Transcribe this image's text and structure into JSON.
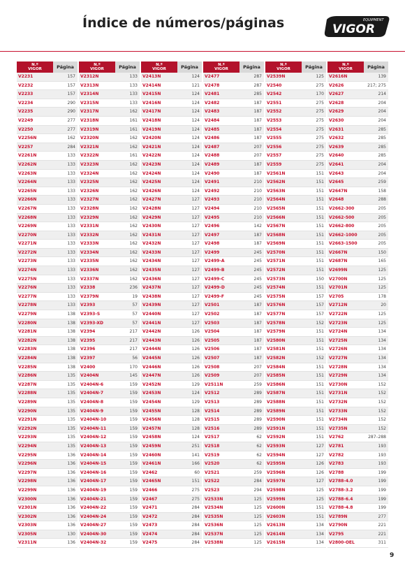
{
  "header": {
    "title": "Índice de números/páginas",
    "logo_small": "EQUIPMENT",
    "logo": "VIGOR"
  },
  "table": {
    "code_header": "N.º\nVIGOR",
    "page_header": "Página",
    "columns": [
      [
        [
          "V2231",
          "157"
        ],
        [
          "V2232",
          "157"
        ],
        [
          "V2233",
          "157"
        ],
        [
          "V2234",
          "290"
        ],
        [
          "V2235",
          "290"
        ],
        [
          "V2249",
          "277"
        ],
        [
          "V2250",
          "277"
        ],
        [
          "V2256N",
          "162"
        ],
        [
          "V2257",
          "284"
        ],
        [
          "V2261N",
          "133"
        ],
        [
          "V2262N",
          "133"
        ],
        [
          "V2263N",
          "133"
        ],
        [
          "V2264N",
          "133"
        ],
        [
          "V2265N",
          "133"
        ],
        [
          "V2266N",
          "133"
        ],
        [
          "V2267N",
          "133"
        ],
        [
          "V2268N",
          "133"
        ],
        [
          "V2269N",
          "133"
        ],
        [
          "V2270N",
          "133"
        ],
        [
          "V2271N",
          "133"
        ],
        [
          "V2272N",
          "133"
        ],
        [
          "V2273N",
          "133"
        ],
        [
          "V2274N",
          "133"
        ],
        [
          "V2275N",
          "133"
        ],
        [
          "V2276N",
          "133"
        ],
        [
          "V2277N",
          "133"
        ],
        [
          "V2278N",
          "133"
        ],
        [
          "V2279N",
          "138"
        ],
        [
          "V2280N",
          "138"
        ],
        [
          "V2281N",
          "138"
        ],
        [
          "V2282N",
          "138"
        ],
        [
          "V2283N",
          "138"
        ],
        [
          "V2284N",
          "138"
        ],
        [
          "V2285N",
          "138"
        ],
        [
          "V2286N",
          "135"
        ],
        [
          "V2287N",
          "135"
        ],
        [
          "V2288N",
          "135"
        ],
        [
          "V2289N",
          "135"
        ],
        [
          "V2290N",
          "135"
        ],
        [
          "V2291N",
          "135"
        ],
        [
          "V2292N",
          "135"
        ],
        [
          "V2293N",
          "135"
        ],
        [
          "V2294N",
          "135"
        ],
        [
          "V2295N",
          "136"
        ],
        [
          "V2296N",
          "136"
        ],
        [
          "V2297N",
          "136"
        ],
        [
          "V2298N",
          "136"
        ],
        [
          "V2299N",
          "136"
        ],
        [
          "V2300N",
          "136"
        ],
        [
          "V2301N",
          "136"
        ],
        [
          "V2302N",
          "136"
        ],
        [
          "V2303N",
          "136"
        ],
        [
          "V2305N",
          "130"
        ],
        [
          "V2311N",
          "136"
        ]
      ],
      [
        [
          "V2312N",
          "133"
        ],
        [
          "V2313N",
          "133"
        ],
        [
          "V2314N",
          "133"
        ],
        [
          "V2315N",
          "133"
        ],
        [
          "V2317N",
          "162"
        ],
        [
          "V2318N",
          "161"
        ],
        [
          "V2319N",
          "161"
        ],
        [
          "V2320N",
          "162"
        ],
        [
          "V2321N",
          "162"
        ],
        [
          "V2322N",
          "161"
        ],
        [
          "V2323N",
          "162"
        ],
        [
          "V2324N",
          "162"
        ],
        [
          "V2325N",
          "162"
        ],
        [
          "V2326N",
          "162"
        ],
        [
          "V2327N",
          "162"
        ],
        [
          "V2328N",
          "162"
        ],
        [
          "V2329N",
          "162"
        ],
        [
          "V2331N",
          "162"
        ],
        [
          "V2332N",
          "162"
        ],
        [
          "V2333N",
          "162"
        ],
        [
          "V2334N",
          "162"
        ],
        [
          "V2335N",
          "162"
        ],
        [
          "V2336N",
          "162"
        ],
        [
          "V2337N",
          "162"
        ],
        [
          "V2338",
          "236"
        ],
        [
          "V2379N",
          "19"
        ],
        [
          "V2393",
          "57"
        ],
        [
          "V2393-S",
          "57"
        ],
        [
          "V2393-XD",
          "57"
        ],
        [
          "V2394",
          "217"
        ],
        [
          "V2395",
          "217"
        ],
        [
          "V2396",
          "217"
        ],
        [
          "V2397",
          "56"
        ],
        [
          "V2400",
          "170"
        ],
        [
          "V2404N",
          "145"
        ],
        [
          "V2404N-6",
          "159"
        ],
        [
          "V2404N-7",
          "159"
        ],
        [
          "V2404N-8",
          "159"
        ],
        [
          "V2404N-9",
          "159"
        ],
        [
          "V2404N-10",
          "159"
        ],
        [
          "V2404N-11",
          "159"
        ],
        [
          "V2404N-12",
          "159"
        ],
        [
          "V2404N-13",
          "159"
        ],
        [
          "V2404N-14",
          "159"
        ],
        [
          "V2404N-15",
          "159"
        ],
        [
          "V2404N-16",
          "159"
        ],
        [
          "V2404N-17",
          "159"
        ],
        [
          "V2404N-19",
          "159"
        ],
        [
          "V2404N-21",
          "159"
        ],
        [
          "V2404N-22",
          "159"
        ],
        [
          "V2404N-24",
          "159"
        ],
        [
          "V2404N-27",
          "159"
        ],
        [
          "V2404N-30",
          "159"
        ],
        [
          "V2404N-32",
          "159"
        ]
      ],
      [
        [
          "V2413N",
          "124"
        ],
        [
          "V2414N",
          "121"
        ],
        [
          "V2415N",
          "124"
        ],
        [
          "V2416N",
          "124"
        ],
        [
          "V2417N",
          "124"
        ],
        [
          "V2418N",
          "124"
        ],
        [
          "V2419N",
          "124"
        ],
        [
          "V2420N",
          "124"
        ],
        [
          "V2421N",
          "124"
        ],
        [
          "V2422N",
          "124"
        ],
        [
          "V2423N",
          "124"
        ],
        [
          "V2424N",
          "124"
        ],
        [
          "V2425N",
          "124"
        ],
        [
          "V2426N",
          "124"
        ],
        [
          "V2427N",
          "127"
        ],
        [
          "V2428N",
          "127"
        ],
        [
          "V2429N",
          "127"
        ],
        [
          "V2430N",
          "127"
        ],
        [
          "V2431N",
          "127"
        ],
        [
          "V2432N",
          "127"
        ],
        [
          "V2433N",
          "127"
        ],
        [
          "V2434N",
          "127"
        ],
        [
          "V2435N",
          "127"
        ],
        [
          "V2436N",
          "127"
        ],
        [
          "V2437N",
          "127"
        ],
        [
          "V2438N",
          "127"
        ],
        [
          "V2439N",
          "127"
        ],
        [
          "V2440N",
          "127"
        ],
        [
          "V2441N",
          "127"
        ],
        [
          "V2442N",
          "126"
        ],
        [
          "V2443N",
          "126"
        ],
        [
          "V2444N",
          "126"
        ],
        [
          "V2445N",
          "126"
        ],
        [
          "V2446N",
          "126"
        ],
        [
          "V2447N",
          "126"
        ],
        [
          "V2452N",
          "129"
        ],
        [
          "V2453N",
          "124"
        ],
        [
          "V2454N",
          "129"
        ],
        [
          "V2455N",
          "128"
        ],
        [
          "V2456N",
          "128"
        ],
        [
          "V2457N",
          "128"
        ],
        [
          "V2458N",
          "124"
        ],
        [
          "V2459N",
          "251"
        ],
        [
          "V2460N",
          "141"
        ],
        [
          "V2461N",
          "166"
        ],
        [
          "V2462",
          "60"
        ],
        [
          "V2465N",
          "151"
        ],
        [
          "V2466",
          "275"
        ],
        [
          "V2467",
          "275"
        ],
        [
          "V2471",
          "284"
        ],
        [
          "V2472",
          "284"
        ],
        [
          "V2473",
          "284"
        ],
        [
          "V2474",
          "284"
        ],
        [
          "V2475",
          "284"
        ]
      ],
      [
        [
          "V2477",
          "287"
        ],
        [
          "V2478",
          "287"
        ],
        [
          "V2481",
          "285"
        ],
        [
          "V2482",
          "187"
        ],
        [
          "V2483",
          "187"
        ],
        [
          "V2484",
          "187"
        ],
        [
          "V2485",
          "187"
        ],
        [
          "V2486",
          "187"
        ],
        [
          "V2487",
          "207"
        ],
        [
          "V2488",
          "207"
        ],
        [
          "V2489",
          "187"
        ],
        [
          "V2490",
          "187"
        ],
        [
          "V2491",
          "210"
        ],
        [
          "V2492",
          "210"
        ],
        [
          "V2493",
          "210"
        ],
        [
          "V2494",
          "210"
        ],
        [
          "V2495",
          "210"
        ],
        [
          "V2496",
          "142"
        ],
        [
          "V2497",
          "187"
        ],
        [
          "V2498",
          "187"
        ],
        [
          "V2499",
          "245"
        ],
        [
          "V2499-A",
          "245"
        ],
        [
          "V2499-B",
          "245"
        ],
        [
          "V2499-C",
          "245"
        ],
        [
          "V2499-D",
          "245"
        ],
        [
          "V2499-F",
          "245"
        ],
        [
          "V2501",
          "187"
        ],
        [
          "V2502",
          "187"
        ],
        [
          "V2503",
          "187"
        ],
        [
          "V2504",
          "187"
        ],
        [
          "V2505",
          "187"
        ],
        [
          "V2506",
          "187"
        ],
        [
          "V2507",
          "187"
        ],
        [
          "V2508",
          "207"
        ],
        [
          "V2509",
          "207"
        ],
        [
          "V2511N",
          "259"
        ],
        [
          "V2512",
          "289"
        ],
        [
          "V2513",
          "289"
        ],
        [
          "V2514",
          "289"
        ],
        [
          "V2515",
          "289"
        ],
        [
          "V2516",
          "289"
        ],
        [
          "V2517",
          "62"
        ],
        [
          "V2518",
          "62"
        ],
        [
          "V2519",
          "62"
        ],
        [
          "V2520",
          "62"
        ],
        [
          "V2521",
          "259"
        ],
        [
          "V2522",
          "284"
        ],
        [
          "V2523",
          "294"
        ],
        [
          "V2533N",
          "125"
        ],
        [
          "V2534N",
          "125"
        ],
        [
          "V2535N",
          "125"
        ],
        [
          "V2536N",
          "125"
        ],
        [
          "V2537N",
          "125"
        ],
        [
          "V2538N",
          "125"
        ]
      ],
      [
        [
          "V2539N",
          "125"
        ],
        [
          "V2540",
          "275"
        ],
        [
          "V2542",
          "170"
        ],
        [
          "V2551",
          "275"
        ],
        [
          "V2552",
          "275"
        ],
        [
          "V2553",
          "275"
        ],
        [
          "V2554",
          "275"
        ],
        [
          "V2555",
          "275"
        ],
        [
          "V2556",
          "275"
        ],
        [
          "V2557",
          "275"
        ],
        [
          "V2559",
          "275"
        ],
        [
          "V2561N",
          "151"
        ],
        [
          "V2562N",
          "151"
        ],
        [
          "V2563N",
          "151"
        ],
        [
          "V2564N",
          "151"
        ],
        [
          "V2565N",
          "151"
        ],
        [
          "V2566N",
          "151"
        ],
        [
          "V2567N",
          "151"
        ],
        [
          "V2568N",
          "151"
        ],
        [
          "V2569N",
          "151"
        ],
        [
          "V2570N",
          "151"
        ],
        [
          "V2571N",
          "151"
        ],
        [
          "V2572N",
          "151"
        ],
        [
          "V2573N",
          "150"
        ],
        [
          "V2574N",
          "151"
        ],
        [
          "V2575N",
          "157"
        ],
        [
          "V2576N",
          "157"
        ],
        [
          "V2577N",
          "157"
        ],
        [
          "V2578N",
          "152"
        ],
        [
          "V2579N",
          "151"
        ],
        [
          "V2580N",
          "151"
        ],
        [
          "V2581N",
          "151"
        ],
        [
          "V2582N",
          "152"
        ],
        [
          "V2584N",
          "151"
        ],
        [
          "V2585N",
          "151"
        ],
        [
          "V2586N",
          "151"
        ],
        [
          "V2587N",
          "151"
        ],
        [
          "V2588N",
          "151"
        ],
        [
          "V2589N",
          "151"
        ],
        [
          "V2590N",
          "151"
        ],
        [
          "V2591N",
          "151"
        ],
        [
          "V2592N",
          "151"
        ],
        [
          "V2593N",
          "127"
        ],
        [
          "V2594N",
          "127"
        ],
        [
          "V2595N",
          "126"
        ],
        [
          "V2596N",
          "126"
        ],
        [
          "V2597N",
          "127"
        ],
        [
          "V2598N",
          "125"
        ],
        [
          "V2599N",
          "125"
        ],
        [
          "V2600N",
          "151"
        ],
        [
          "V2603N",
          "151"
        ],
        [
          "V2613N",
          "134"
        ],
        [
          "V2614N",
          "134"
        ],
        [
          "V2615N",
          "134"
        ]
      ],
      [
        [
          "V2616N",
          "139"
        ],
        [
          "V2626",
          "217; 275"
        ],
        [
          "V2627",
          "214"
        ],
        [
          "V2628",
          "204"
        ],
        [
          "V2629",
          "204"
        ],
        [
          "V2630",
          "204"
        ],
        [
          "V2631",
          "285"
        ],
        [
          "V2632",
          "285"
        ],
        [
          "V2639",
          "285"
        ],
        [
          "V2640",
          "285"
        ],
        [
          "V2641",
          "204"
        ],
        [
          "V2643",
          "204"
        ],
        [
          "V2645",
          "259"
        ],
        [
          "V2647N",
          "158"
        ],
        [
          "V2648",
          "288"
        ],
        [
          "V2662-300",
          "205"
        ],
        [
          "V2662-500",
          "205"
        ],
        [
          "V2662-800",
          "205"
        ],
        [
          "V2662-1000",
          "205"
        ],
        [
          "V2663-1500",
          "205"
        ],
        [
          "V2667N",
          "150"
        ],
        [
          "V2687N",
          "165"
        ],
        [
          "V2699N",
          "125"
        ],
        [
          "V2700N",
          "125"
        ],
        [
          "V2701N",
          "125"
        ],
        [
          "V2705",
          "178"
        ],
        [
          "V2712N",
          "20"
        ],
        [
          "V2722N",
          "125"
        ],
        [
          "V2723N",
          "125"
        ],
        [
          "V2724N",
          "134"
        ],
        [
          "V2725N",
          "134"
        ],
        [
          "V2726N",
          "134"
        ],
        [
          "V2727N",
          "134"
        ],
        [
          "V2728N",
          "134"
        ],
        [
          "V2729N",
          "134"
        ],
        [
          "V2730N",
          "152"
        ],
        [
          "V2731N",
          "152"
        ],
        [
          "V2732N",
          "152"
        ],
        [
          "V2733N",
          "152"
        ],
        [
          "V2734N",
          "152"
        ],
        [
          "V2735N",
          "152"
        ],
        [
          "V2762",
          "287–288"
        ],
        [
          "V2781",
          "193"
        ],
        [
          "V2782",
          "193"
        ],
        [
          "V2783",
          "193"
        ],
        [
          "V2788",
          "199"
        ],
        [
          "V2788-4.0",
          "199"
        ],
        [
          "V2788-3.2",
          "199"
        ],
        [
          "V2788-6.4",
          "199"
        ],
        [
          "V2788-4.8",
          "199"
        ],
        [
          "V2789N",
          "277"
        ],
        [
          "V2790N",
          "221"
        ],
        [
          "V2795",
          "221"
        ],
        [
          "V2800-OEL",
          "311"
        ]
      ]
    ]
  },
  "footer": {
    "page_number": "9"
  }
}
